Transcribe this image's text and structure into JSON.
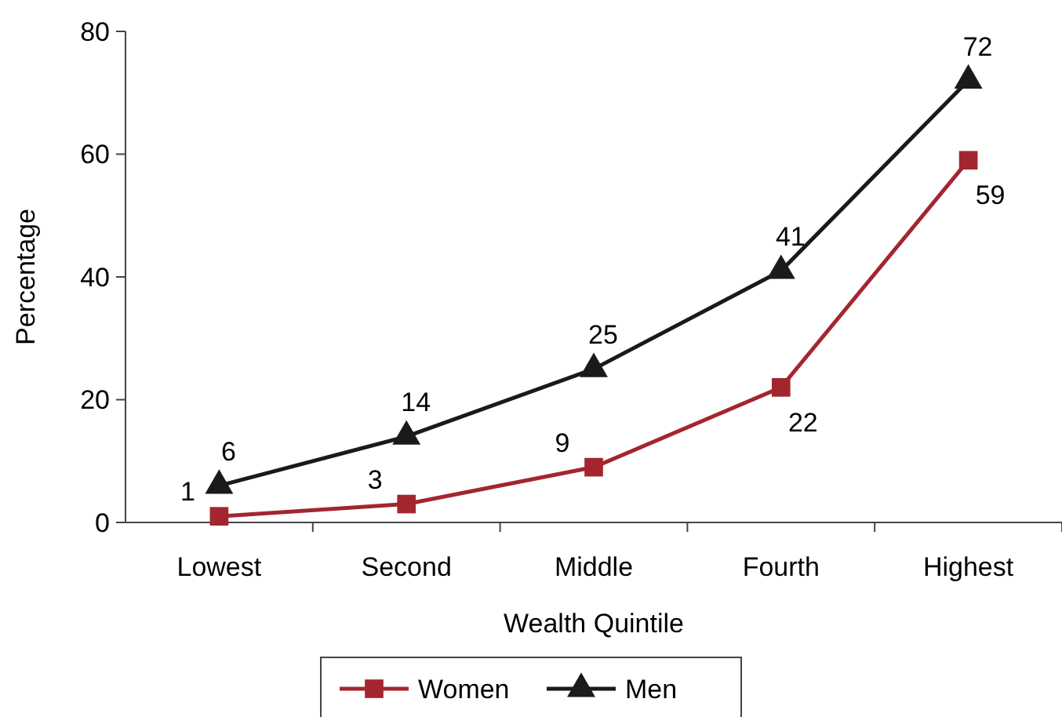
{
  "chart_data": {
    "type": "line",
    "xlabel": "Wealth Quintile",
    "ylabel": "Percentage",
    "categories": [
      "Lowest",
      "Second",
      "Middle",
      "Fourth",
      "Highest"
    ],
    "series": [
      {
        "name": "Women",
        "color": "#a3262f",
        "values": [
          1,
          3,
          9,
          22,
          59
        ],
        "marker": "square"
      },
      {
        "name": "Men",
        "color": "#1a1a1a",
        "values": [
          6,
          14,
          25,
          41,
          72
        ],
        "marker": "triangle"
      }
    ],
    "ylim": [
      0,
      80
    ],
    "yticks": [
      0,
      20,
      40,
      60,
      80
    ],
    "data_labels": true,
    "legend": "bottom",
    "grid": false,
    "line_style": "solid"
  }
}
